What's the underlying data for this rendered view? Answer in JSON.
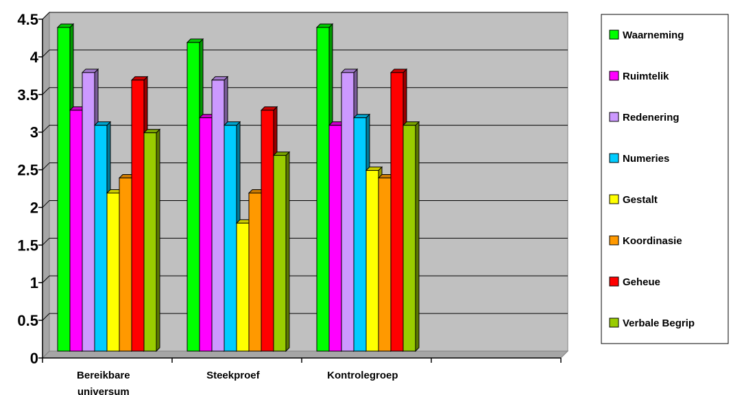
{
  "chart_data": {
    "type": "bar",
    "categories": [
      [
        "Bereikbare",
        "universum"
      ],
      [
        "Steekproef"
      ],
      [
        "Kontrolegroep"
      ],
      [
        ""
      ]
    ],
    "series": [
      {
        "name": "Waarneming",
        "color": "#00ff00",
        "values": [
          4.3,
          4.1,
          4.3,
          null
        ]
      },
      {
        "name": "Ruimtelik",
        "color": "#ff00ff",
        "values": [
          3.2,
          3.1,
          3.0,
          null
        ]
      },
      {
        "name": "Redenering",
        "color": "#cc99ff",
        "values": [
          3.7,
          3.6,
          3.7,
          null
        ]
      },
      {
        "name": "Numeries",
        "color": "#00ccff",
        "values": [
          3.0,
          3.0,
          3.1,
          null
        ]
      },
      {
        "name": "Gestalt",
        "color": "#ffff00",
        "values": [
          2.1,
          1.7,
          2.4,
          null
        ]
      },
      {
        "name": "Koordinasie",
        "color": "#ff9900",
        "values": [
          2.3,
          2.1,
          2.3,
          null
        ]
      },
      {
        "name": "Geheue",
        "color": "#ff0000",
        "values": [
          3.6,
          3.2,
          3.7,
          null
        ]
      },
      {
        "name": "Verbale Begrip",
        "color": "#99cc00",
        "values": [
          2.9,
          2.6,
          3.0,
          null
        ]
      }
    ],
    "ylim": [
      0,
      4.5
    ],
    "yticks": [
      "0",
      "0.5",
      "1",
      "1.5",
      "2",
      "2.5",
      "3",
      "3.5",
      "4",
      "4.5"
    ],
    "grid": true,
    "plot_background": "#c0c0c0",
    "legend": "right",
    "bar_style": "3d"
  }
}
